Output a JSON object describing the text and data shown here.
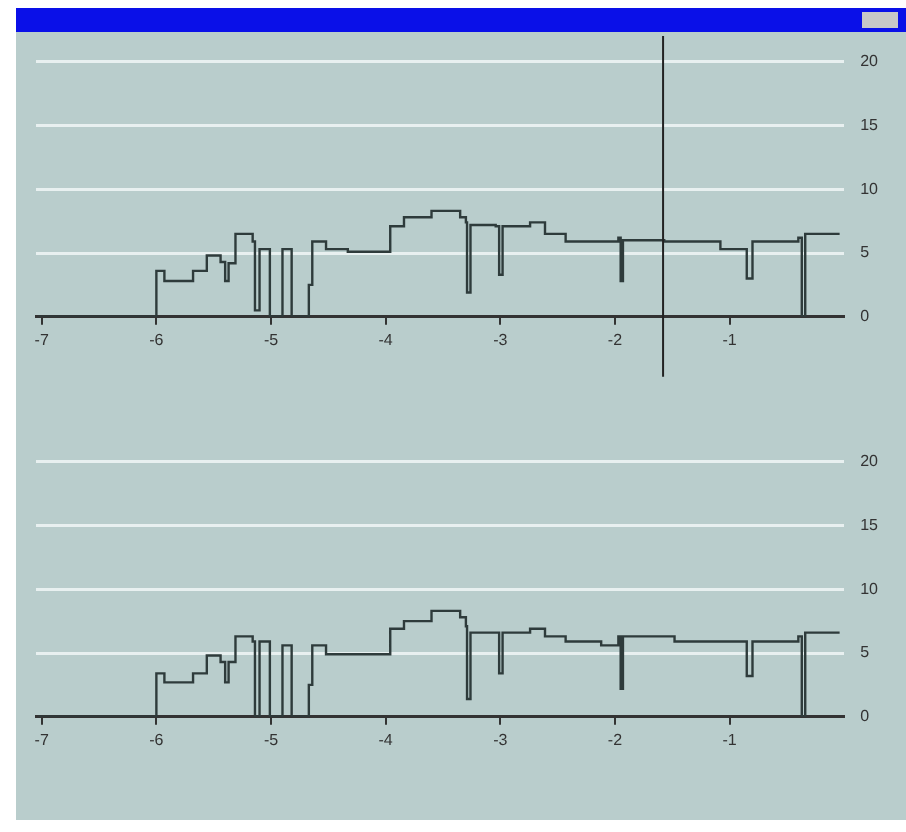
{
  "chart_data": [
    {
      "type": "step",
      "x": [
        -7.03,
        -6.0,
        -5.93,
        -5.68,
        -5.56,
        -5.44,
        -5.4,
        -5.37,
        -5.31,
        -5.16,
        -5.14,
        -5.1,
        -5.04,
        -5.01,
        -4.9,
        -4.82,
        -4.67,
        -4.64,
        -4.52,
        -4.33,
        -3.96,
        -3.84,
        -3.6,
        -3.35,
        -3.3,
        -3.29,
        -3.26,
        -3.04,
        -3.01,
        -2.98,
        -2.74,
        -2.61,
        -2.43,
        -2.12,
        -1.97,
        -1.95,
        -1.93,
        -1.57,
        -1.08,
        -0.87,
        -0.85,
        -0.8,
        -0.4,
        -0.37,
        -0.34,
        -0.04
      ],
      "series": [
        {
          "color": "#2e3b3b",
          "values": [
            0,
            3.6,
            2.8,
            3.6,
            4.8,
            4.3,
            2.8,
            4.2,
            6.5,
            5.9,
            0.5,
            5.3,
            5.3,
            0,
            5.3,
            0,
            2.5,
            5.9,
            5.3,
            5.1,
            7.1,
            7.8,
            8.3,
            7.8,
            7.4,
            1.9,
            7.2,
            7.1,
            3.3,
            7.1,
            7.4,
            6.5,
            5.9,
            5.9,
            6.2,
            2.8,
            6,
            5.9,
            5.3,
            5.3,
            3,
            5.9,
            6.2,
            0,
            6.5,
            6.5
          ]
        }
      ],
      "xlim": [
        -7.05,
        0
      ],
      "xticks": [
        -7,
        -6,
        -5,
        -4,
        -3,
        -2,
        -1
      ],
      "ylim": [
        0,
        20
      ],
      "yticks": [
        0,
        5,
        10,
        15,
        20
      ],
      "grid": "y",
      "marker": "none",
      "ref_lines": [
        {
          "axis": "x",
          "value": -1.58
        }
      ]
    },
    {
      "type": "step",
      "x": [
        -7.03,
        -6.0,
        -5.93,
        -5.68,
        -5.56,
        -5.44,
        -5.4,
        -5.37,
        -5.31,
        -5.16,
        -5.14,
        -5.1,
        -5.04,
        -5.01,
        -4.9,
        -4.82,
        -4.67,
        -4.64,
        -4.52,
        -4.33,
        -3.96,
        -3.84,
        -3.6,
        -3.35,
        -3.3,
        -3.29,
        -3.26,
        -3.04,
        -3.01,
        -2.98,
        -2.74,
        -2.61,
        -2.43,
        -2.12,
        -1.97,
        -1.95,
        -1.93,
        -1.48,
        -0.87,
        -0.85,
        -0.8,
        -0.4,
        -0.37,
        -0.34,
        -0.04
      ],
      "series": [
        {
          "color": "#2e3b3b",
          "values": [
            0,
            3.4,
            2.7,
            3.4,
            4.8,
            4.3,
            2.7,
            4.3,
            6.3,
            5.9,
            0,
            5.9,
            5.9,
            0,
            5.6,
            0,
            2.5,
            5.6,
            4.9,
            4.9,
            6.9,
            7.5,
            8.3,
            7.8,
            7.1,
            1.4,
            6.6,
            6.6,
            3.4,
            6.6,
            6.9,
            6.3,
            5.9,
            5.6,
            6.3,
            2.2,
            6.3,
            5.9,
            5.9,
            3.2,
            5.9,
            6.3,
            0,
            6.6,
            6.6
          ]
        }
      ],
      "xlim": [
        -7.05,
        0
      ],
      "xticks": [
        -7,
        -6,
        -5,
        -4,
        -3,
        -2,
        -1
      ],
      "ylim": [
        0,
        20
      ],
      "yticks": [
        0,
        5,
        10,
        15,
        20
      ],
      "grid": "y",
      "marker": "none"
    }
  ]
}
